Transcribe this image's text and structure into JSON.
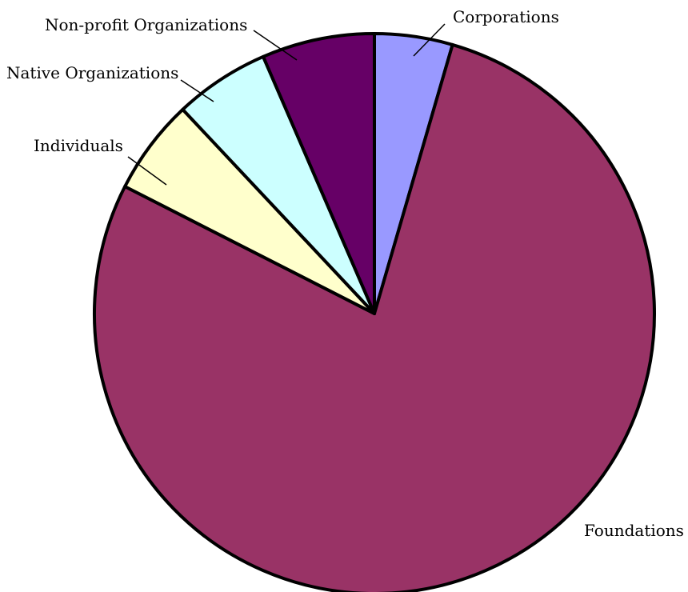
{
  "chart_data": {
    "type": "pie",
    "title": "",
    "start_angle_deg": 0,
    "direction": "clockwise",
    "categories": [
      "Corporations",
      "Foundations",
      "Individuals",
      "Native Organizations",
      "Non-profit Organizations"
    ],
    "values": [
      4.5,
      78.0,
      5.5,
      5.5,
      6.5
    ],
    "colors": [
      "#9999FF",
      "#993366",
      "#FFFFCC",
      "#CCFFFF",
      "#660066"
    ],
    "edge_color": "#000000",
    "legend": "none",
    "labels_outside": true
  }
}
